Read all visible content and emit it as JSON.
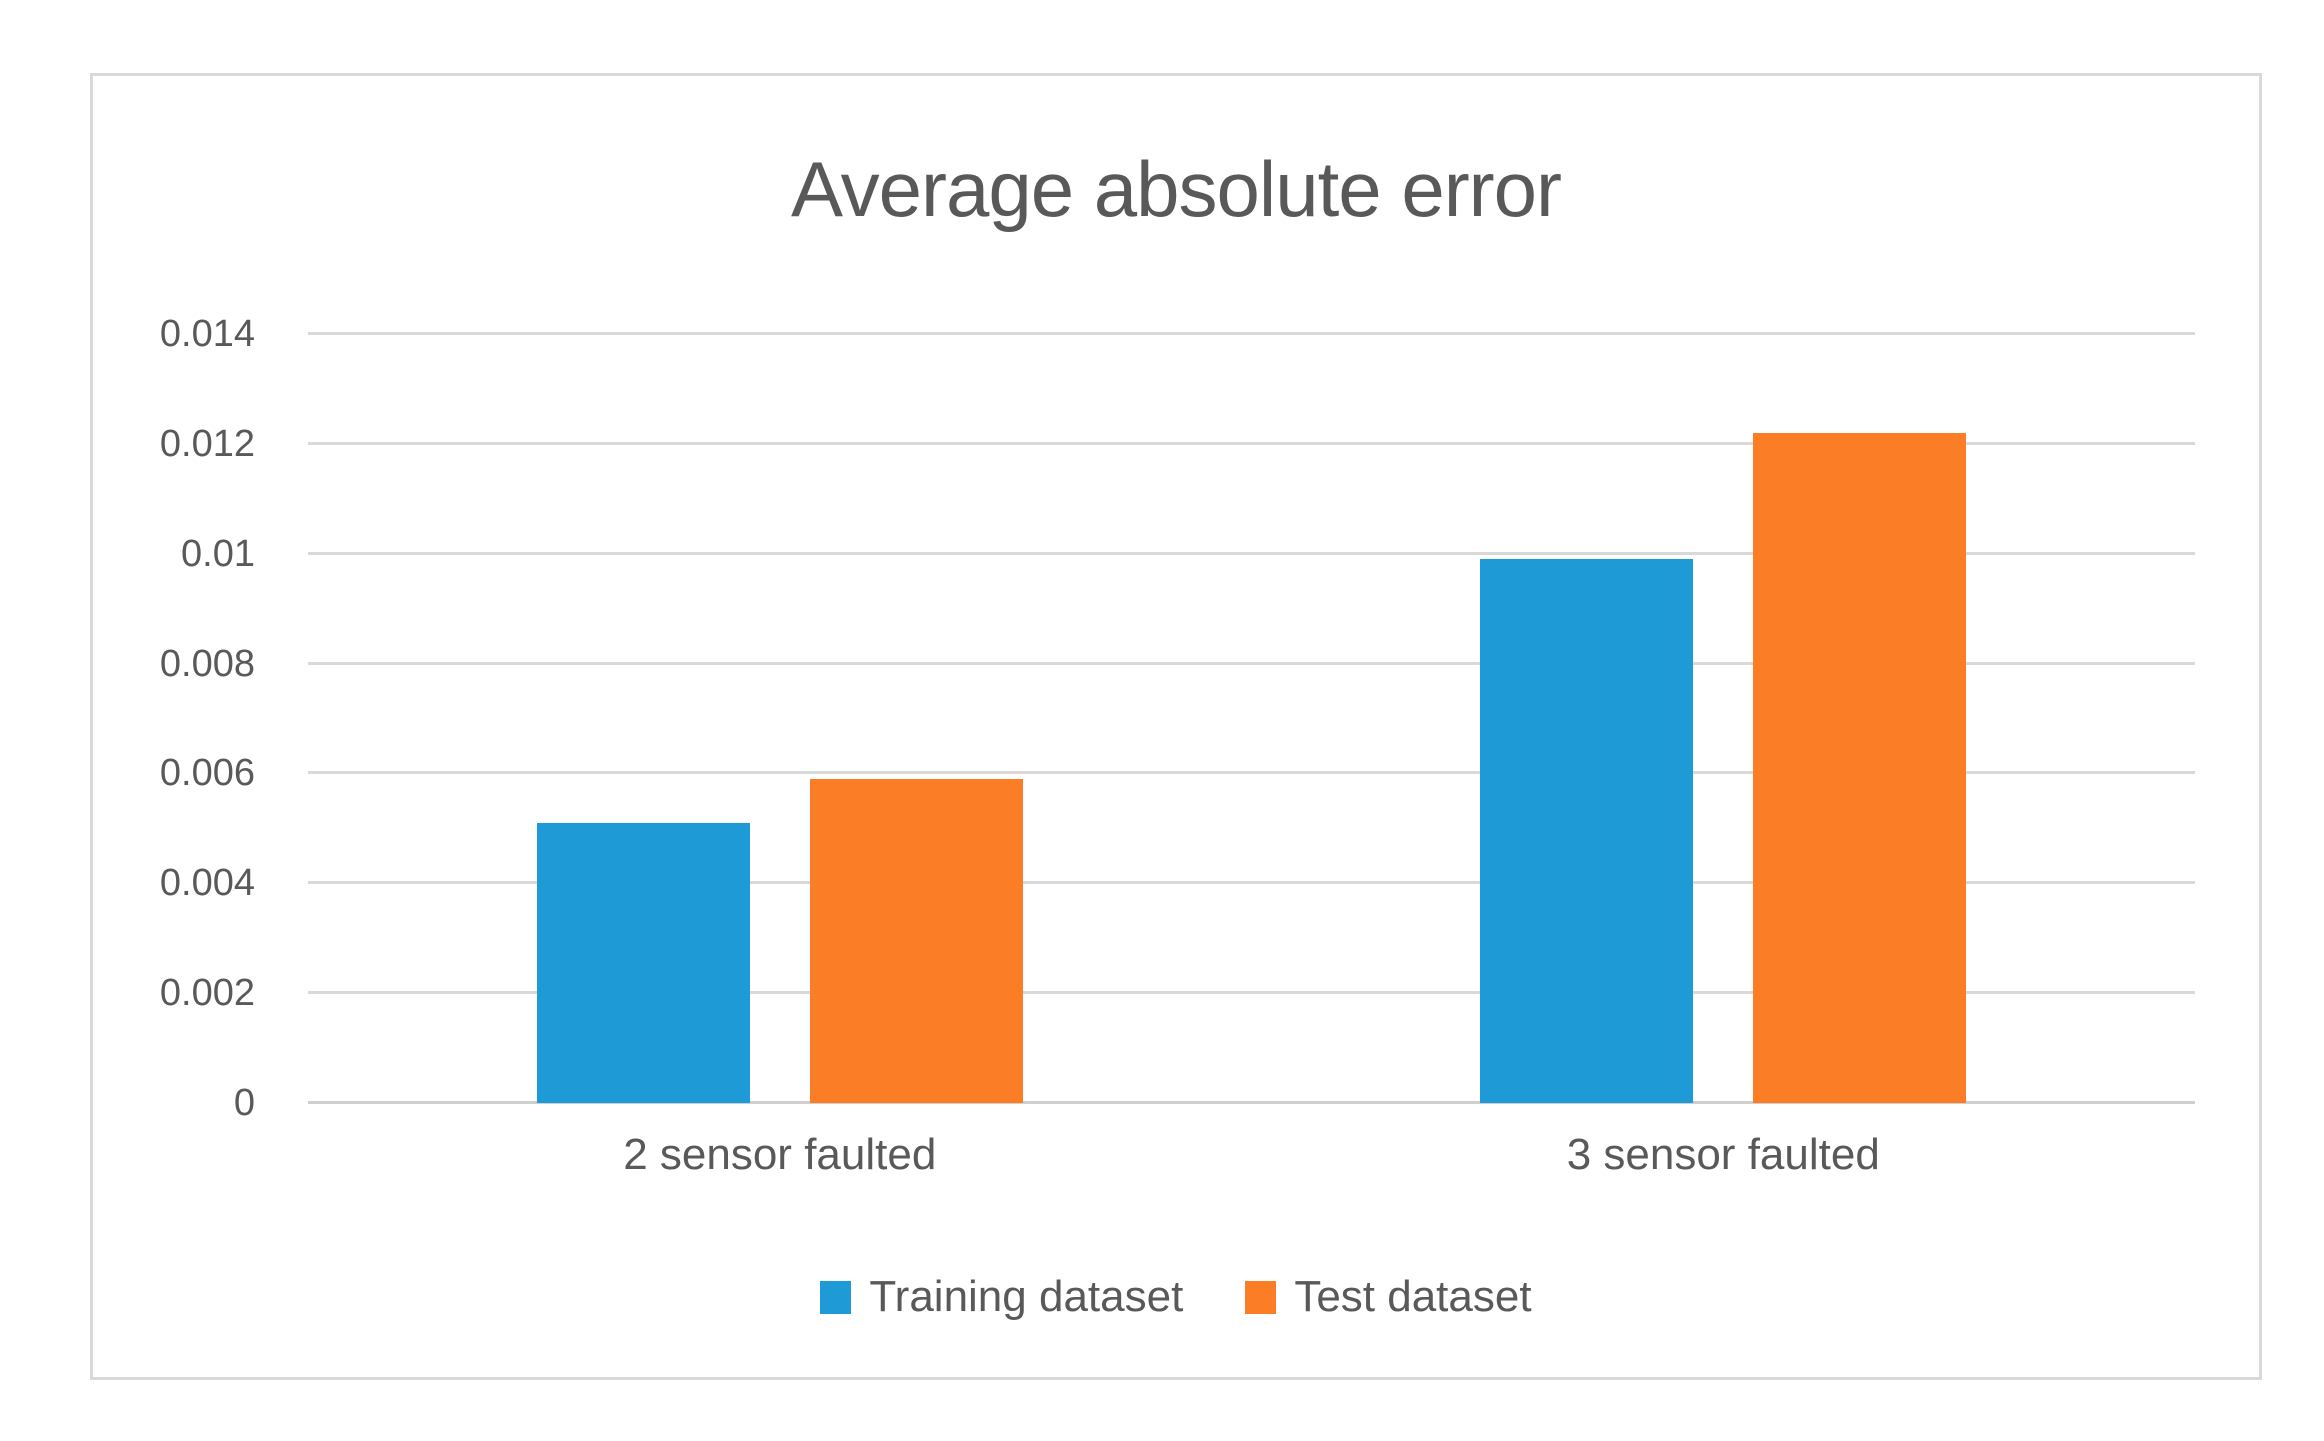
{
  "chart_data": {
    "type": "bar",
    "title": "Average absolute error",
    "categories": [
      "2 sensor faulted",
      "3 sensor faulted"
    ],
    "series": [
      {
        "name": "Training dataset",
        "color": "#1E9BD7",
        "values": [
          0.0051,
          0.0099
        ]
      },
      {
        "name": "Test dataset",
        "color": "#FB7D26",
        "values": [
          0.0059,
          0.0122
        ]
      }
    ],
    "xlabel": "",
    "ylabel": "",
    "ylim": [
      0,
      0.014
    ],
    "ytick_step": 0.002,
    "ytick_labels": [
      "0",
      "0.002",
      "0.004",
      "0.006",
      "0.008",
      "0.01",
      "0.012",
      "0.014"
    ],
    "grid": true,
    "legend_position": "bottom"
  },
  "colors": {
    "title_text": "#595959",
    "axis_text": "#595959",
    "gridline": "#d9d9d9",
    "frame_border": "#d9d9d9",
    "background": "#ffffff",
    "series_blue": "#1E9BD7",
    "series_orange": "#FB7D26"
  }
}
